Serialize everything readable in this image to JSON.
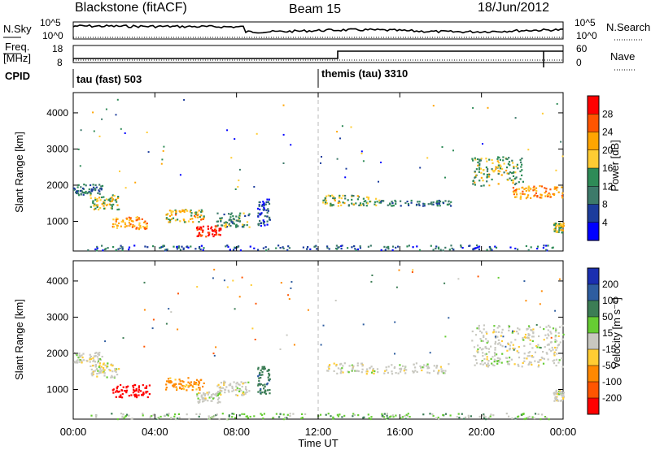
{
  "header": {
    "station": "Blackstone (fitACF)",
    "beam": "Beam 15",
    "date": "18/Jun/2012"
  },
  "noise_panel": {
    "left_label": "N.Sky",
    "left_ticks": [
      "10^5",
      "10^0"
    ],
    "right_label": "N.Search",
    "right_ticks": [
      "10^5",
      "10^0"
    ]
  },
  "freq_panel": {
    "left_label_1": "Freq.",
    "left_label_2": "[MHz]",
    "left_ticks": [
      "18",
      "8"
    ],
    "right_label": "Nave",
    "right_ticks": [
      "60",
      "0"
    ]
  },
  "cpid_panel": {
    "label": "CPID",
    "programs": [
      {
        "name": "tau (fast) 503",
        "start_hour": 0
      },
      {
        "name": "themis (tau) 3310",
        "start_hour": 12
      }
    ]
  },
  "power_colorbar": {
    "title": "Power [dB]",
    "ticks": [
      "28",
      "24",
      "20",
      "16",
      "12",
      "8",
      "4"
    ],
    "colors": [
      "#ff0000",
      "#ff5500",
      "#ffa500",
      "#ffcc33",
      "#2e8b57",
      "#3d7a6a",
      "#1c3c9c",
      "#0000ff"
    ]
  },
  "velocity_colorbar": {
    "title": "Velocity [m s⁻¹]",
    "ticks": [
      "200",
      "100",
      "50",
      "15",
      "-15",
      "-50",
      "-100",
      "-200"
    ],
    "colors": [
      "#1a2fb0",
      "#2e5da0",
      "#3c7d55",
      "#66cc33",
      "#c8c8c0",
      "#ffcc33",
      "#ff8800",
      "#ff5500",
      "#ff0000"
    ]
  },
  "chart_data": [
    {
      "type": "heatmap",
      "title": "",
      "xlabel": "",
      "ylabel": "Slant Range [km]",
      "x_ticks": [
        "00:00",
        "04:00",
        "08:00",
        "12:00",
        "16:00",
        "20:00",
        "00:00"
      ],
      "xlim_hours": [
        0,
        24
      ],
      "y_ticks": [
        1000,
        2000,
        3000,
        4000
      ],
      "ylim_km": [
        180,
        4560
      ],
      "value": "power_dB",
      "scatter_bands": [
        {
          "hours": [
            0.0,
            1.4
          ],
          "km": [
            1750,
            2050
          ],
          "power_dB": 10
        },
        {
          "hours": [
            0.8,
            2.2
          ],
          "km": [
            1350,
            1750
          ],
          "power_dB": 16
        },
        {
          "hours": [
            1.9,
            3.6
          ],
          "km": [
            800,
            1150
          ],
          "power_dB": 20
        },
        {
          "hours": [
            4.5,
            6.4
          ],
          "km": [
            1000,
            1350
          ],
          "power_dB": 18
        },
        {
          "hours": [
            6.0,
            7.2
          ],
          "km": [
            600,
            900
          ],
          "power_dB": 28
        },
        {
          "hours": [
            7.0,
            8.6
          ],
          "km": [
            850,
            1250
          ],
          "power_dB": 12
        },
        {
          "hours": [
            9.0,
            9.6
          ],
          "km": [
            900,
            1650
          ],
          "power_dB": 6
        },
        {
          "hours": [
            12.2,
            15.0
          ],
          "km": [
            1450,
            1750
          ],
          "power_dB": 14
        },
        {
          "hours": [
            15.0,
            18.5
          ],
          "km": [
            1450,
            1600
          ],
          "power_dB": 10
        },
        {
          "hours": [
            19.5,
            22.0
          ],
          "km": [
            2000,
            2800
          ],
          "power_dB": 14
        },
        {
          "hours": [
            21.5,
            24.0
          ],
          "km": [
            1650,
            2000
          ],
          "power_dB": 20
        },
        {
          "hours": [
            23.5,
            24.0
          ],
          "km": [
            700,
            1000
          ],
          "power_dB": 16
        },
        {
          "hours": [
            0.5,
            23.5
          ],
          "km": [
            220,
            360
          ],
          "power_dB": 8
        }
      ]
    },
    {
      "type": "heatmap",
      "title": "",
      "xlabel": "Time UT",
      "ylabel": "Slant Range [km]",
      "x_ticks": [
        "00:00",
        "04:00",
        "08:00",
        "12:00",
        "16:00",
        "20:00",
        "00:00"
      ],
      "xlim_hours": [
        0,
        24
      ],
      "y_ticks": [
        1000,
        2000,
        3000,
        4000
      ],
      "ylim_km": [
        180,
        4560
      ],
      "value": "velocity_m_s",
      "scatter_bands": [
        {
          "hours": [
            0.0,
            1.4
          ],
          "km": [
            1750,
            2050
          ],
          "velocity": 0
        },
        {
          "hours": [
            0.8,
            2.2
          ],
          "km": [
            1350,
            1750
          ],
          "velocity": 0
        },
        {
          "hours": [
            1.9,
            3.8
          ],
          "km": [
            800,
            1150
          ],
          "velocity": -220
        },
        {
          "hours": [
            4.5,
            6.4
          ],
          "km": [
            1000,
            1350
          ],
          "velocity": -60
        },
        {
          "hours": [
            6.0,
            7.2
          ],
          "km": [
            650,
            950
          ],
          "velocity": 0
        },
        {
          "hours": [
            7.0,
            8.6
          ],
          "km": [
            850,
            1250
          ],
          "velocity": 0
        },
        {
          "hours": [
            9.0,
            9.6
          ],
          "km": [
            900,
            1650
          ],
          "velocity": 60
        },
        {
          "hours": [
            12.2,
            18.5
          ],
          "km": [
            1450,
            1750
          ],
          "velocity": 0
        },
        {
          "hours": [
            19.5,
            24.0
          ],
          "km": [
            1650,
            2800
          ],
          "velocity": 0
        },
        {
          "hours": [
            23.5,
            24.0
          ],
          "km": [
            700,
            1000
          ],
          "velocity": 0
        },
        {
          "hours": [
            0.5,
            23.5
          ],
          "km": [
            200,
            360
          ],
          "velocity": 20
        }
      ]
    }
  ]
}
